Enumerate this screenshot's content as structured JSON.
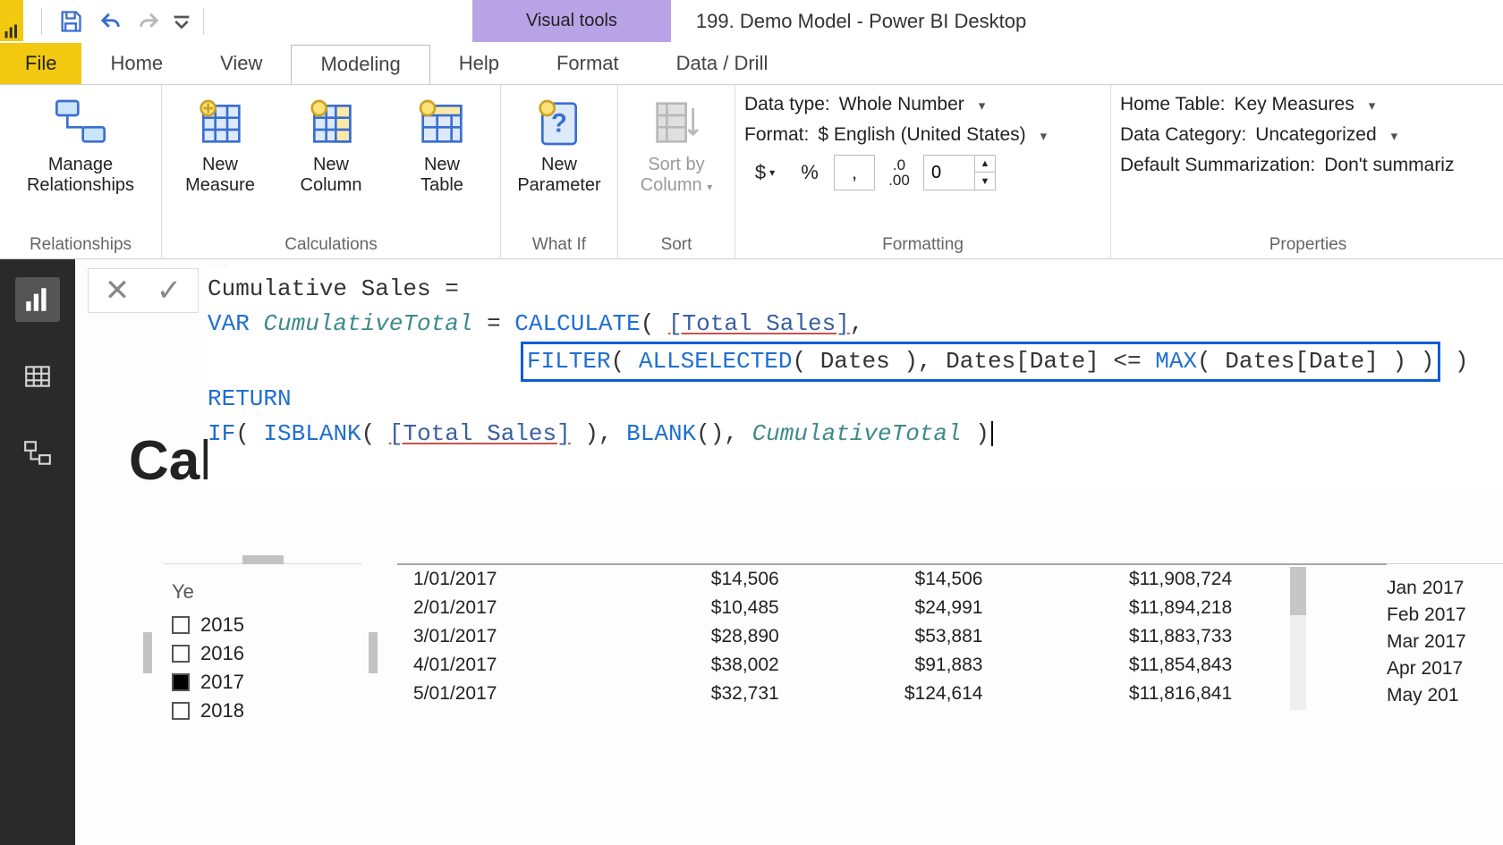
{
  "colors": {
    "accent": "#f2c811",
    "contextTab": "#b8a3e6",
    "highlight": "#0b5cd6",
    "railBg": "#2a2a2a"
  },
  "titlebar": {
    "contextTab": "Visual tools",
    "docTitle": "199. Demo Model - Power BI Desktop"
  },
  "tabs": {
    "file": "File",
    "items": [
      "Home",
      "View",
      "Modeling",
      "Help",
      "Format",
      "Data / Drill"
    ],
    "activeIndex": 2
  },
  "ribbon": {
    "relationships": {
      "btn": "Manage\nRelationships",
      "group": "Relationships"
    },
    "calculations": {
      "newMeasure": "New\nMeasure",
      "newColumn": "New\nColumn",
      "newTable": "New\nTable",
      "group": "Calculations"
    },
    "whatif": {
      "btn": "New\nParameter",
      "group": "What If"
    },
    "sort": {
      "btn": "Sort by\nColumn",
      "group": "Sort"
    },
    "formatting": {
      "dataTypeLabel": "Data type:",
      "dataTypeValue": "Whole Number",
      "formatLabel": "Format:",
      "formatValue": "$ English (United States)",
      "currency": "$",
      "percent": "%",
      "thousands": ",",
      "decimalsIcon": ".00",
      "decimalsValue": "0",
      "group": "Formatting"
    },
    "properties": {
      "homeTableLabel": "Home Table:",
      "homeTableValue": "Key Measures",
      "dataCatLabel": "Data Category:",
      "dataCatValue": "Uncategorized",
      "summarizeLabel": "Default Summarization:",
      "summarizeValue": "Don't summariz",
      "group": "Properties"
    }
  },
  "formula": {
    "line1_name": "Cumulative Sales",
    "var_kw": "VAR",
    "var_name": "CumulativeTotal",
    "calc": "CALCULATE",
    "totalSales": "[Total Sales]",
    "filter": "FILTER",
    "allselected": "ALLSELECTED",
    "datesTbl": "Dates",
    "datesCol": "Dates[Date]",
    "lte": "<=",
    "max": "MAX",
    "return_kw": "RETURN",
    "if": "IF",
    "isblank": "ISBLANK",
    "blank": "BLANK",
    "cumVar": "CumulativeTotal"
  },
  "pageTitlePartial": "Cal",
  "slicer": {
    "title": "Ye",
    "years": [
      "2015",
      "2016",
      "2017",
      "2018"
    ],
    "checkedIndex": 2
  },
  "grid": {
    "rows": [
      {
        "date": "1/01/2017",
        "a": "$14,506",
        "b": "$14,506",
        "c": "$11,908,724"
      },
      {
        "date": "2/01/2017",
        "a": "$10,485",
        "b": "$24,991",
        "c": "$11,894,218"
      },
      {
        "date": "3/01/2017",
        "a": "$28,890",
        "b": "$53,881",
        "c": "$11,883,733"
      },
      {
        "date": "4/01/2017",
        "a": "$38,002",
        "b": "$91,883",
        "c": "$11,854,843"
      },
      {
        "date": "5/01/2017",
        "a": "$32,731",
        "b": "$124,614",
        "c": "$11,816,841"
      }
    ]
  },
  "months": [
    "Jan 2017",
    "Feb 2017",
    "Mar 2017",
    "Apr 2017",
    "May 201"
  ]
}
